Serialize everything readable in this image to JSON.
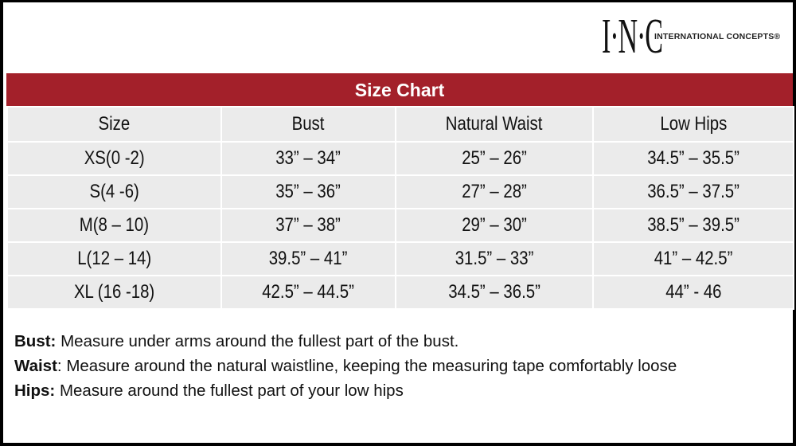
{
  "logo": {
    "mark": "I·N·C",
    "text": "INTERNATIONAL CONCEPTS®"
  },
  "title": "Size Chart",
  "table": {
    "headers": [
      "Size",
      "Bust",
      "Natural Waist",
      "Low Hips"
    ],
    "rows": [
      [
        "XS(0 -2)",
        "33” – 34”",
        "25” – 26”",
        "34.5” – 35.5”"
      ],
      [
        "S(4 -6)",
        "35” – 36”",
        "27” – 28”",
        "36.5” – 37.5”"
      ],
      [
        "M(8 – 10)",
        "37” – 38”",
        "29” – 30”",
        "38.5” – 39.5”"
      ],
      [
        "L(12 – 14)",
        "39.5” – 41”",
        "31.5” – 33”",
        "41” – 42.5”"
      ],
      [
        "XL (16 -18)",
        "42.5” – 44.5”",
        "34.5” – 36.5”",
        "44” - 46"
      ]
    ]
  },
  "notes": [
    {
      "label": "Bust:",
      "text": " Measure under arms around the fullest part of the bust."
    },
    {
      "label": "Waist",
      "text": ": Measure around the natural waistline, keeping the measuring tape comfortably loose"
    },
    {
      "label": "Hips:",
      "text": " Measure around the fullest part of your low hips"
    }
  ],
  "colors": {
    "title_bar": "#a3202a",
    "cell": "#ebebeb"
  }
}
